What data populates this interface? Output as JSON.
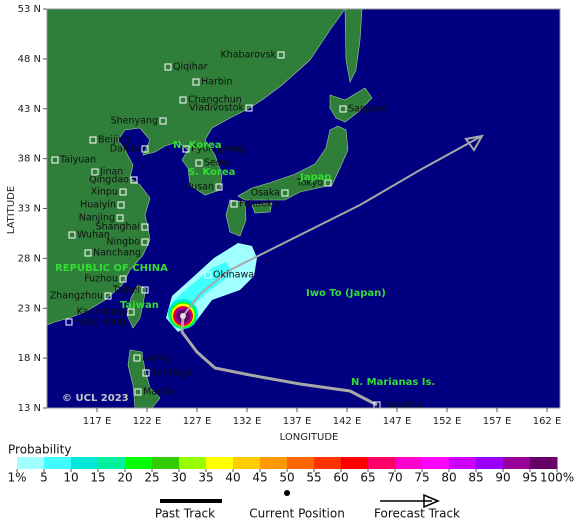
{
  "map": {
    "lat_range": [
      13,
      53
    ],
    "lon_range": [
      112,
      163.3
    ],
    "lat_ticks": [
      {
        "value": 13,
        "label": "13 N"
      },
      {
        "value": 18,
        "label": "18 N"
      },
      {
        "value": 23,
        "label": "23 N"
      },
      {
        "value": 28,
        "label": "28 N"
      },
      {
        "value": 33,
        "label": "33 N"
      },
      {
        "value": 38,
        "label": "38 N"
      },
      {
        "value": 43,
        "label": "43 N"
      },
      {
        "value": 48,
        "label": "48 N"
      },
      {
        "value": 53,
        "label": "53 N"
      }
    ],
    "lon_ticks": [
      {
        "value": 117,
        "label": "117 E"
      },
      {
        "value": 122,
        "label": "122 E"
      },
      {
        "value": 127,
        "label": "127 E"
      },
      {
        "value": 132,
        "label": "132 E"
      },
      {
        "value": 137,
        "label": "137 E"
      },
      {
        "value": 142,
        "label": "142 E"
      },
      {
        "value": 147,
        "label": "147 E"
      },
      {
        "value": 152,
        "label": "152 E"
      },
      {
        "value": 157,
        "label": "157 E"
      },
      {
        "value": 162,
        "label": "162 E"
      }
    ],
    "y_label": "LATITUDE",
    "x_label": "LONGITUDE",
    "copyright": "© UCL 2023",
    "regions": [
      "N. Korea",
      "S. Korea",
      "Japan",
      "REPUBLIC OF CHINA",
      "Taiwan",
      "Iwo To (Japan)",
      "N. Marianas Is."
    ],
    "cities": [
      "Khabarovsk",
      "Qiqihar",
      "Harbin",
      "Changchun",
      "Vladivostok",
      "Sapporo",
      "Shenyang",
      "Beijing",
      "Dalian",
      "Pyongyang",
      "Taiyuan",
      "Seoul",
      "Jinan",
      "Qingdao",
      "Tokyo",
      "Pusan",
      "Osaka",
      "Xinpu",
      "Huaiyin",
      "Fukuoka",
      "Nanjing",
      "Shanghai",
      "Wuhan",
      "Ningbo",
      "Nanchang",
      "Okinawa",
      "Fuzhou",
      "Taipei",
      "Zhangzhou",
      "Kaohsiung",
      "Hong Kong",
      "Laoag",
      "Santiago",
      "Manila",
      "Hagatna"
    ]
  },
  "legend": {
    "title": "Probability",
    "ticks": [
      {
        "value": 1,
        "label": "1%"
      },
      5,
      10,
      15,
      20,
      25,
      30,
      35,
      40,
      45,
      50,
      55,
      60,
      65,
      70,
      75,
      80,
      85,
      90,
      95,
      {
        "value": 100,
        "label": "100%"
      }
    ],
    "colors": [
      "#a0ffff",
      "#40ffff",
      "#00e8d8",
      "#00f0a0",
      "#00ff00",
      "#33cc00",
      "#99ff00",
      "#ffff00",
      "#ffcc00",
      "#ff9900",
      "#ff6600",
      "#ff3300",
      "#ff0000",
      "#ff0066",
      "#ff00cc",
      "#ff00ff",
      "#cc00ff",
      "#9900ff",
      "#990099",
      "#660066"
    ]
  },
  "track_legend": {
    "past": "Past Track",
    "current": "Current Position",
    "forecast": "Forecast Track"
  }
}
